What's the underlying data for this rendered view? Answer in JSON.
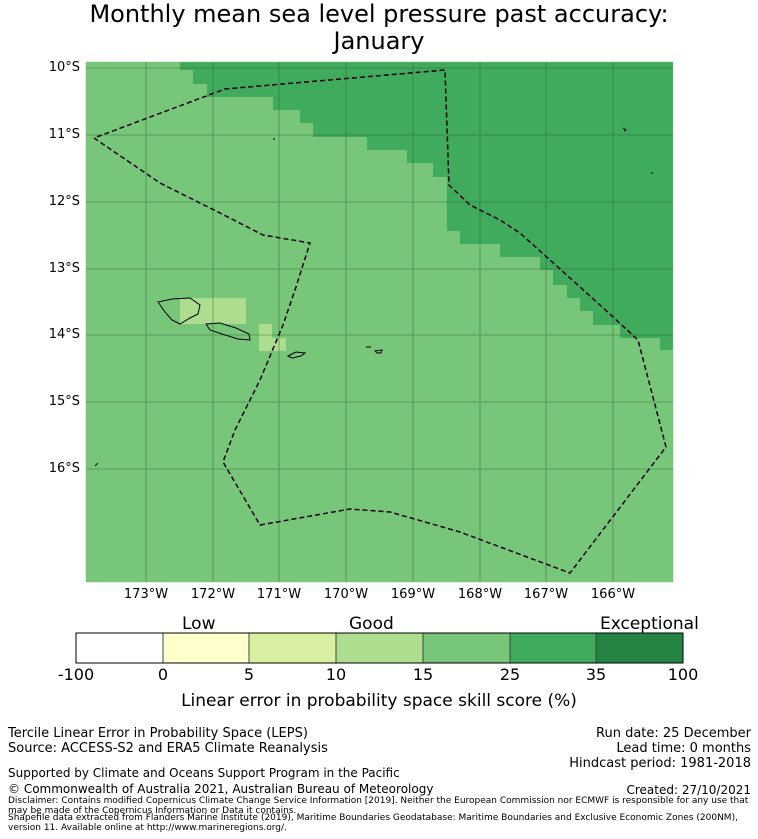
{
  "title": {
    "line1": "Monthly mean sea level pressure past accuracy:",
    "line2": "January"
  },
  "map": {
    "lat_labels": [
      "10°S",
      "11°S",
      "12°S",
      "13°S",
      "14°S",
      "15°S",
      "16°S"
    ],
    "lon_labels": [
      "173°W",
      "172°W",
      "171°W",
      "170°W",
      "169°W",
      "168°W",
      "167°W",
      "166°W"
    ],
    "colors": {
      "good_fill": "#78c679",
      "high_fill": "#41ab5d",
      "light_fill": "#addd8e",
      "grid": "#2f5a2f",
      "coast": "#000000",
      "boundary": "#000000"
    }
  },
  "colorbar": {
    "categories": [
      "Low",
      "Good",
      "Exceptional"
    ],
    "ticks": [
      "-100",
      "0",
      "5",
      "10",
      "15",
      "25",
      "35",
      "100"
    ],
    "colors": [
      "#ffffff",
      "#ffffcc",
      "#d9f0a3",
      "#addd8e",
      "#78c679",
      "#41ab5d",
      "#238443"
    ],
    "label": "Linear error in probability space skill score (%)"
  },
  "info": {
    "method": "Tercile Linear Error in Probability Space (LEPS)",
    "source": "Source: ACCESS-S2 and ERA5 Climate Reanalysis",
    "run_date": "Run date: 25 December",
    "lead_time": "Lead time: 0 months",
    "hindcast": "Hindcast period: 1981-2018",
    "support": "Supported by Climate and Oceans Support Program in the Pacific",
    "copyright": "© Commonwealth of Australia 2021, Australian Bureau of Meteorology",
    "created": "Created: 27/10/2021",
    "disclaimer": "Disclaimer: Contains modified Copernicus Climate Change Service Information [2019]. Neither the European Commission nor ECMWF is responsible for any use that may be made of the Copernicus Information or Data it contains.",
    "shapefile": "Shapefile data extracted from Flanders Marine Institute (2019), Maritime Boundaries Geodatabase: Maritime Boundaries and Exclusive Economic Zones (200NM), version 11. Available online at http://www.marineregions.org/."
  }
}
